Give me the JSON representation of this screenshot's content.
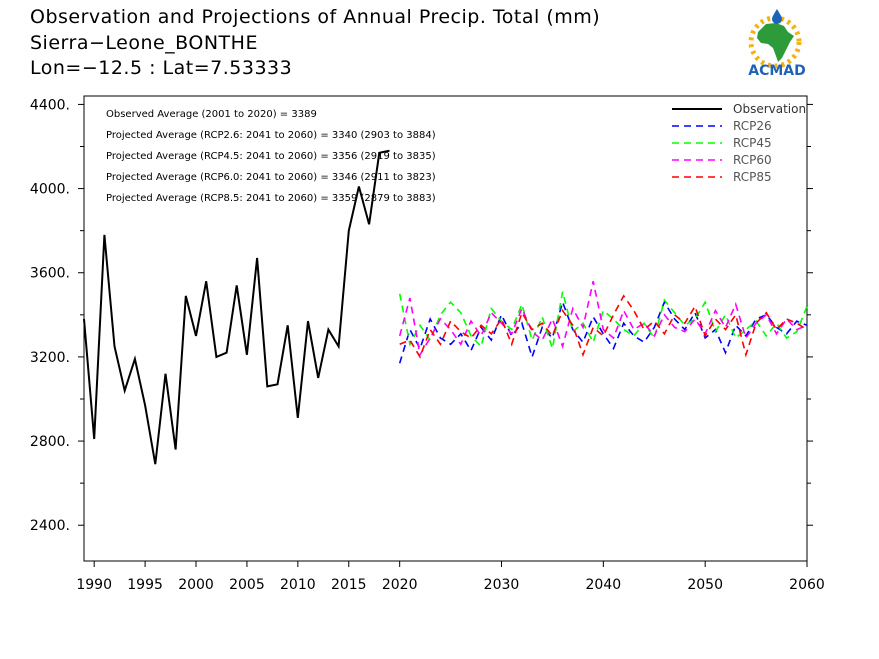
{
  "title": {
    "line1": "Observation and Projections of Annual Precip. Total (mm)",
    "line2": "Sierra−Leone_BONTHE",
    "line3": "Lon=−12.5 : Lat=7.53333"
  },
  "logo": {
    "text": "ACMAD"
  },
  "annotations": [
    "Observed Average (2001 to 2020) = 3389",
    "Projected Average (RCP2.6: 2041 to 2060) = 3340 (2903 to 3884)",
    "Projected Average (RCP4.5: 2041 to 2060) = 3356 (2919 to 3835)",
    "Projected Average (RCP6.0: 2041 to 2060) = 3346 (2911 to 3823)",
    "Projected Average (RCP8.5: 2041 to 2060) = 3359 (2879 to 3883)"
  ],
  "chart_data": {
    "type": "line",
    "xlim": [
      1989,
      2060
    ],
    "ylim": [
      2230,
      4440
    ],
    "yticks": [
      2400,
      2800,
      3200,
      3600,
      4000,
      4400
    ],
    "ytick_labels": [
      "2400.",
      "2800.",
      "3200.",
      "3600.",
      "4000.",
      "4400."
    ],
    "xticks": [
      1990,
      1995,
      2000,
      2005,
      2010,
      2015,
      2020,
      2030,
      2040,
      2050,
      2060
    ],
    "xtick_labels": [
      "1990",
      "1995",
      "2000",
      "2005",
      "2010",
      "2015",
      "2020",
      "2030",
      "2040",
      "2050",
      "2060"
    ],
    "legend_position": "top-right",
    "series": [
      {
        "name": "Observation",
        "color": "#000000",
        "dashed": false,
        "x": [
          1989,
          1990,
          1991,
          1992,
          1993,
          1994,
          1995,
          1996,
          1997,
          1998,
          1999,
          2000,
          2001,
          2002,
          2003,
          2004,
          2005,
          2006,
          2007,
          2008,
          2009,
          2010,
          2011,
          2012,
          2013,
          2014,
          2015,
          2016,
          2017,
          2018,
          2019
        ],
        "values": [
          3380,
          2810,
          3780,
          3250,
          3040,
          3190,
          2970,
          2690,
          3120,
          2760,
          3490,
          3300,
          3560,
          3200,
          3220,
          3540,
          3210,
          3670,
          3060,
          3070,
          3350,
          2910,
          3370,
          3100,
          3330,
          3250,
          3800,
          4010,
          3830,
          4170,
          4180
        ]
      },
      {
        "name": "RCP26",
        "color": "#0000ff",
        "dashed": true,
        "x": [
          2020,
          2021,
          2022,
          2023,
          2024,
          2025,
          2026,
          2027,
          2028,
          2029,
          2030,
          2031,
          2032,
          2033,
          2034,
          2035,
          2036,
          2037,
          2038,
          2039,
          2040,
          2041,
          2042,
          2043,
          2044,
          2045,
          2046,
          2047,
          2048,
          2049,
          2050,
          2051,
          2052,
          2053,
          2054,
          2055,
          2056,
          2057,
          2058,
          2059,
          2060
        ],
        "values": [
          3170,
          3330,
          3240,
          3380,
          3290,
          3260,
          3310,
          3230,
          3340,
          3280,
          3400,
          3300,
          3360,
          3200,
          3340,
          3290,
          3460,
          3330,
          3270,
          3390,
          3310,
          3240,
          3360,
          3300,
          3270,
          3340,
          3460,
          3380,
          3330,
          3410,
          3290,
          3330,
          3220,
          3350,
          3300,
          3380,
          3400,
          3340,
          3310,
          3370,
          3350
        ]
      },
      {
        "name": "RCP45",
        "color": "#00ff00",
        "dashed": true,
        "x": [
          2020,
          2021,
          2022,
          2023,
          2024,
          2025,
          2026,
          2027,
          2028,
          2029,
          2030,
          2031,
          2032,
          2033,
          2034,
          2035,
          2036,
          2037,
          2038,
          2039,
          2040,
          2041,
          2042,
          2043,
          2044,
          2045,
          2046,
          2047,
          2048,
          2049,
          2050,
          2051,
          2052,
          2053,
          2054,
          2055,
          2056,
          2057,
          2058,
          2059,
          2060
        ],
        "values": [
          3500,
          3260,
          3350,
          3280,
          3400,
          3460,
          3410,
          3300,
          3250,
          3430,
          3370,
          3330,
          3450,
          3280,
          3390,
          3240,
          3510,
          3320,
          3360,
          3270,
          3420,
          3380,
          3330,
          3300,
          3360,
          3290,
          3470,
          3410,
          3350,
          3380,
          3460,
          3320,
          3400,
          3290,
          3330,
          3370,
          3300,
          3360,
          3290,
          3320,
          3440
        ]
      },
      {
        "name": "RCP60",
        "color": "#ff00ff",
        "dashed": true,
        "x": [
          2020,
          2021,
          2022,
          2023,
          2024,
          2025,
          2026,
          2027,
          2028,
          2029,
          2030,
          2031,
          2032,
          2033,
          2034,
          2035,
          2036,
          2037,
          2038,
          2039,
          2040,
          2041,
          2042,
          2043,
          2044,
          2045,
          2046,
          2047,
          2048,
          2049,
          2050,
          2051,
          2052,
          2053,
          2054,
          2055,
          2056,
          2057,
          2058,
          2059,
          2060
        ],
        "values": [
          3300,
          3480,
          3210,
          3290,
          3380,
          3330,
          3260,
          3370,
          3300,
          3410,
          3360,
          3310,
          3430,
          3320,
          3280,
          3380,
          3250,
          3430,
          3340,
          3560,
          3330,
          3290,
          3420,
          3330,
          3360,
          3300,
          3400,
          3340,
          3320,
          3380,
          3310,
          3420,
          3340,
          3450,
          3290,
          3360,
          3400,
          3310,
          3380,
          3330,
          3350
        ]
      },
      {
        "name": "RCP85",
        "color": "#ff0000",
        "dashed": true,
        "x": [
          2020,
          2021,
          2022,
          2023,
          2024,
          2025,
          2026,
          2027,
          2028,
          2029,
          2030,
          2031,
          2032,
          2033,
          2034,
          2035,
          2036,
          2037,
          2038,
          2039,
          2040,
          2041,
          2042,
          2043,
          2044,
          2045,
          2046,
          2047,
          2048,
          2049,
          2050,
          2051,
          2052,
          2053,
          2054,
          2055,
          2056,
          2057,
          2058,
          2059,
          2060
        ],
        "values": [
          3260,
          3280,
          3200,
          3330,
          3260,
          3370,
          3320,
          3290,
          3350,
          3310,
          3380,
          3260,
          3410,
          3330,
          3360,
          3300,
          3420,
          3350,
          3210,
          3340,
          3300,
          3400,
          3490,
          3420,
          3330,
          3370,
          3310,
          3400,
          3360,
          3440,
          3300,
          3380,
          3330,
          3400,
          3210,
          3360,
          3410,
          3330,
          3380,
          3360,
          3330
        ]
      }
    ]
  }
}
